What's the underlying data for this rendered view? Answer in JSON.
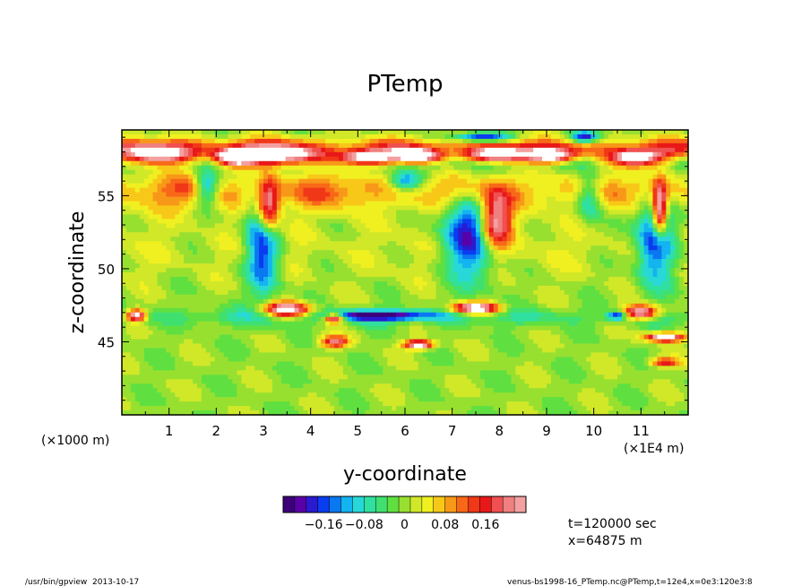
{
  "chart_data": {
    "type": "heatmap",
    "title": "PTemp",
    "xlabel": "y-coordinate",
    "ylabel": "z-coordinate",
    "x_scale_note": "(×1E4 m)",
    "y_scale_note": "(×1000 m)",
    "x_ticks": [
      "1",
      "2",
      "3",
      "4",
      "5",
      "6",
      "7",
      "8",
      "9",
      "10",
      "11"
    ],
    "y_ticks": [
      "45",
      "50",
      "55"
    ],
    "xlim": [
      0,
      12
    ],
    "ylim": [
      40,
      59.5
    ],
    "colorbar_labels": [
      "−0.16",
      "−0.08",
      "0",
      "0.08",
      "0.16"
    ],
    "colorbar_range": [
      -0.24,
      0.24
    ],
    "time_label": "t=120000 sec",
    "position_label": "x=64875 m",
    "footer_left": "/usr/bin/gpview  2013-10-17",
    "footer_right": "venus-bs1998-16_PTemp.nc@PTemp,t=12e4,x=0e3:120e3:8",
    "palette": [
      "#3d007a",
      "#5a00a8",
      "#2a1ad0",
      "#0a3cf0",
      "#0a78f0",
      "#14b4f0",
      "#28d8d8",
      "#30e0a0",
      "#40e070",
      "#60e040",
      "#98e030",
      "#d0e828",
      "#f0f020",
      "#f8c818",
      "#f89818",
      "#f86818",
      "#f03818",
      "#e81818",
      "#f05050",
      "#f08080",
      "#f4a0a0"
    ],
    "features": [
      {
        "kind": "band",
        "value": 0.12,
        "y_center": 55.3,
        "y_half": 1.3
      },
      {
        "kind": "band",
        "value": -0.05,
        "y_center": 57.3,
        "y_half": 0.6
      },
      {
        "kind": "band",
        "value": 0.14,
        "y_center": 58.3,
        "y_half": 0.7
      },
      {
        "kind": "band",
        "value": -0.06,
        "y_center": 46.7,
        "y_half": 0.6
      },
      {
        "kind": "band",
        "value": 0.03,
        "y_center": 51.5,
        "y_half": 2.5
      },
      {
        "kind": "blob",
        "x": 0.8,
        "z": 57.8,
        "rx": 0.7,
        "rz": 0.7,
        "value": 0.3
      },
      {
        "kind": "blob",
        "x": 2.4,
        "z": 57.6,
        "rx": 0.4,
        "rz": 0.5,
        "value": 0.3
      },
      {
        "kind": "blob",
        "x": 3.3,
        "z": 57.7,
        "rx": 0.9,
        "rz": 0.7,
        "value": 0.3
      },
      {
        "kind": "blob",
        "x": 5.2,
        "z": 57.6,
        "rx": 0.6,
        "rz": 0.5,
        "value": 0.3
      },
      {
        "kind": "blob",
        "x": 6.3,
        "z": 57.7,
        "rx": 0.5,
        "rz": 0.5,
        "value": 0.3
      },
      {
        "kind": "blob",
        "x": 7.9,
        "z": 57.8,
        "rx": 0.6,
        "rz": 0.5,
        "value": 0.3
      },
      {
        "kind": "blob",
        "x": 9.1,
        "z": 57.7,
        "rx": 0.5,
        "rz": 0.5,
        "value": 0.3
      },
      {
        "kind": "blob",
        "x": 10.9,
        "z": 57.6,
        "rx": 0.6,
        "rz": 0.6,
        "value": 0.3
      },
      {
        "kind": "blob",
        "x": 3.1,
        "z": 54.2,
        "rx": 0.25,
        "rz": 2.0,
        "value": 0.3
      },
      {
        "kind": "blob",
        "x": 7.9,
        "z": 53.2,
        "rx": 0.35,
        "rz": 2.0,
        "value": 0.3
      },
      {
        "kind": "blob",
        "x": 11.4,
        "z": 54.0,
        "rx": 0.15,
        "rz": 1.8,
        "value": 0.3
      },
      {
        "kind": "blob",
        "x": 3.0,
        "z": 52.0,
        "rx": 0.35,
        "rz": 3.5,
        "value": -0.22
      },
      {
        "kind": "blob",
        "x": 7.4,
        "z": 52.5,
        "rx": 0.6,
        "rz": 3.0,
        "value": -0.22
      },
      {
        "kind": "blob",
        "x": 1.8,
        "z": 55.5,
        "rx": 0.25,
        "rz": 1.2,
        "value": -0.18
      },
      {
        "kind": "blob",
        "x": 11.3,
        "z": 52.0,
        "rx": 0.4,
        "rz": 3.0,
        "value": -0.2
      },
      {
        "kind": "blob",
        "x": 6.0,
        "z": 56.0,
        "rx": 0.35,
        "rz": 0.7,
        "value": -0.15
      },
      {
        "kind": "blob",
        "x": 9.9,
        "z": 55.0,
        "rx": 0.3,
        "rz": 1.5,
        "value": -0.18
      },
      {
        "kind": "blob",
        "x": 5.5,
        "z": 46.8,
        "rx": 1.2,
        "rz": 0.35,
        "value": -0.2
      },
      {
        "kind": "blob",
        "x": 3.5,
        "z": 47.2,
        "rx": 0.5,
        "rz": 0.5,
        "value": 0.3
      },
      {
        "kind": "blob",
        "x": 7.5,
        "z": 47.3,
        "rx": 0.5,
        "rz": 0.4,
        "value": 0.3
      },
      {
        "kind": "blob",
        "x": 11.0,
        "z": 47.0,
        "rx": 0.4,
        "rz": 0.5,
        "value": 0.3
      },
      {
        "kind": "blob",
        "x": 11.5,
        "z": 45.3,
        "rx": 0.4,
        "rz": 0.3,
        "value": 0.3
      },
      {
        "kind": "blob",
        "x": 6.3,
        "z": 44.8,
        "rx": 0.3,
        "rz": 0.3,
        "value": 0.3
      },
      {
        "kind": "blob",
        "x": 4.5,
        "z": 46.6,
        "rx": 0.2,
        "rz": 0.3,
        "value": 0.3
      },
      {
        "kind": "blob",
        "x": 0.3,
        "z": 46.8,
        "rx": 0.2,
        "rz": 0.4,
        "value": 0.3
      },
      {
        "kind": "blob",
        "x": 4.5,
        "z": 45.0,
        "rx": 0.3,
        "rz": 0.4,
        "value": 0.2
      },
      {
        "kind": "blob",
        "x": 10.5,
        "z": 46.8,
        "rx": 0.2,
        "rz": 0.3,
        "value": -0.2
      },
      {
        "kind": "blob",
        "x": 7.6,
        "z": 59.0,
        "rx": 0.6,
        "rz": 0.3,
        "value": -0.2
      },
      {
        "kind": "blob",
        "x": 9.8,
        "z": 59.0,
        "rx": 0.3,
        "rz": 0.4,
        "value": -0.22
      },
      {
        "kind": "blob",
        "x": 11.5,
        "z": 43.6,
        "rx": 0.3,
        "rz": 0.3,
        "value": 0.18
      }
    ]
  }
}
